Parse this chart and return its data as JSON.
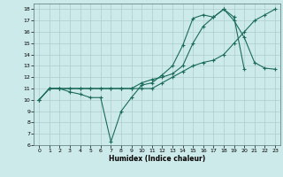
{
  "xlabel": "Humidex (Indice chaleur)",
  "xlim": [
    -0.5,
    23.5
  ],
  "ylim": [
    6,
    18.5
  ],
  "xticks": [
    0,
    1,
    2,
    3,
    4,
    5,
    6,
    7,
    8,
    9,
    10,
    11,
    12,
    13,
    14,
    15,
    16,
    17,
    18,
    19,
    20,
    21,
    22,
    23
  ],
  "yticks": [
    6,
    7,
    8,
    9,
    10,
    11,
    12,
    13,
    14,
    15,
    16,
    17,
    18
  ],
  "background_color": "#cdeaea",
  "grid_color": "#b0cccc",
  "line_color": "#1a6b5a",
  "line1_x": [
    0,
    1,
    2,
    3,
    4,
    5,
    6,
    7,
    8,
    9,
    10,
    11,
    12,
    13,
    14,
    15,
    16,
    17,
    18,
    19,
    20,
    21,
    22,
    23
  ],
  "line1_y": [
    10,
    11,
    11,
    10.7,
    10.5,
    10.2,
    10.2,
    6.3,
    9.0,
    10.2,
    11.3,
    11.5,
    12.2,
    13.0,
    14.8,
    17.2,
    17.5,
    17.3,
    18.0,
    17.0,
    15.5,
    13.3,
    12.8,
    12.7
  ],
  "line2_x": [
    0,
    1,
    2,
    3,
    4,
    5,
    6,
    7,
    8,
    9,
    10,
    11,
    12,
    13,
    14,
    15,
    16,
    17,
    18,
    19,
    20,
    21,
    22,
    23
  ],
  "line2_y": [
    10,
    11,
    11,
    11,
    11,
    11,
    11,
    11,
    11,
    11,
    11,
    11,
    11.5,
    12,
    12.5,
    13,
    13.3,
    13.5,
    14,
    15,
    16,
    17,
    17.5,
    18
  ],
  "line3_x": [
    0,
    1,
    2,
    3,
    4,
    5,
    6,
    7,
    8,
    9,
    10,
    11,
    12,
    13,
    14,
    15,
    16,
    17,
    18,
    19,
    20
  ],
  "line3_y": [
    10,
    11,
    11,
    11,
    11,
    11,
    11,
    11,
    11,
    11,
    11.5,
    11.8,
    12,
    12.3,
    13,
    15,
    16.5,
    17.3,
    18,
    17.3,
    12.7
  ]
}
